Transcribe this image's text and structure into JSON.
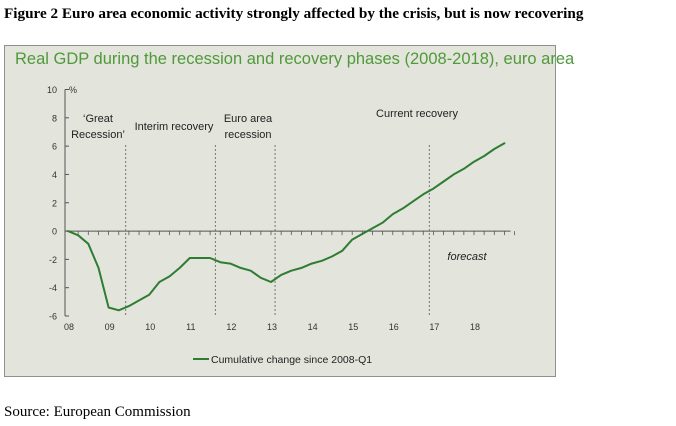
{
  "figure_title": "Figure 2 Euro area economic activity strongly affected by the crisis, but is now recovering",
  "source": "Source: European Commission",
  "colors": {
    "line": "#2e7d32",
    "panel_bg": "#e3e4dc",
    "title_green": "#4f9a3a",
    "axis": "#555555"
  },
  "chart_data": {
    "type": "line",
    "title": "Real GDP during the recession and recovery phases (2008-2018), euro area",
    "ylabel": "%",
    "ylim": [
      -6,
      10
    ],
    "yticks": [
      "10",
      "8",
      "6",
      "4",
      "2",
      "0",
      "-2",
      "-4",
      "-6"
    ],
    "xlim": [
      2008,
      2018.9
    ],
    "xticks": [
      "08",
      "09",
      "10",
      "11",
      "12",
      "13",
      "14",
      "15",
      "16",
      "17",
      "18"
    ],
    "series": [
      {
        "name": "Cumulative change since 2008-Q1",
        "x": [
          2008.0,
          2008.25,
          2008.5,
          2008.75,
          2009.0,
          2009.25,
          2009.5,
          2009.75,
          2010.0,
          2010.25,
          2010.5,
          2010.75,
          2011.0,
          2011.25,
          2011.5,
          2011.75,
          2012.0,
          2012.25,
          2012.5,
          2012.75,
          2013.0,
          2013.25,
          2013.5,
          2013.75,
          2014.0,
          2014.25,
          2014.5,
          2014.75,
          2015.0,
          2015.25,
          2015.5,
          2015.75,
          2016.0,
          2016.25,
          2016.5,
          2016.75,
          2017.0,
          2017.25,
          2017.5,
          2017.75,
          2018.0,
          2018.25,
          2018.5,
          2018.75
        ],
        "y": [
          0.0,
          -0.3,
          -0.9,
          -2.6,
          -5.4,
          -5.6,
          -5.3,
          -4.9,
          -4.5,
          -3.6,
          -3.2,
          -2.6,
          -1.9,
          -1.9,
          -1.9,
          -2.2,
          -2.3,
          -2.6,
          -2.8,
          -3.3,
          -3.6,
          -3.1,
          -2.8,
          -2.6,
          -2.3,
          -2.1,
          -1.8,
          -1.4,
          -0.6,
          -0.2,
          0.2,
          0.6,
          1.2,
          1.6,
          2.1,
          2.6,
          3.0,
          3.5,
          4.0,
          4.4,
          4.9,
          5.3,
          5.8,
          6.2
        ]
      }
    ],
    "phase_lines_x": [
      2009.42,
      2011.63,
      2013.1,
      2016.9
    ],
    "annotations": {
      "great_recession": [
        "‘Great",
        "Recession’"
      ],
      "interim_recovery": "Interim recovery",
      "euro_area_recession": [
        "Euro area",
        "recession"
      ],
      "current_recovery": "Current recovery",
      "forecast": "forecast"
    },
    "legend": "bottom-center",
    "grid": false
  }
}
